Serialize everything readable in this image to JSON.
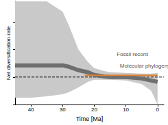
{
  "chart_data": {
    "type": "line",
    "x_label": "Time [Ma]",
    "y_label": "Net diversification rate",
    "xlim": [
      45,
      -2
    ],
    "xticks": [
      40,
      30,
      20,
      10,
      0
    ],
    "ylim": [
      -0.4,
      1.1
    ],
    "yticks": [
      -0.4,
      0,
      0.4,
      0.8
    ],
    "tick_labels": "x",
    "grid": false,
    "reference_line": 0,
    "series": [
      {
        "name": "Fossil record",
        "color": "#6e6e6e",
        "x": [
          45,
          40,
          35,
          30,
          28,
          25,
          22,
          20,
          17,
          15,
          10,
          5,
          2,
          0
        ],
        "values": [
          0.17,
          0.17,
          0.17,
          0.17,
          0.15,
          0.1,
          0.07,
          0.03,
          0.01,
          0.0,
          0.0,
          -0.02,
          -0.05,
          -0.07
        ],
        "lower": [
          -0.3,
          -0.3,
          -0.28,
          -0.25,
          -0.22,
          -0.15,
          -0.07,
          -0.04,
          -0.04,
          -0.04,
          -0.05,
          -0.1,
          -0.2,
          -0.4
        ],
        "upper": [
          1.1,
          1.1,
          1.1,
          0.95,
          0.75,
          0.4,
          0.22,
          0.13,
          0.09,
          0.07,
          0.06,
          0.05,
          0.05,
          0.06
        ]
      },
      {
        "name": "Molecular phylogeny",
        "color": "#d9813a",
        "x": [
          23,
          20,
          15,
          10,
          5,
          0
        ],
        "values": [
          0.025,
          0.025,
          0.025,
          0.025,
          0.025,
          0.025
        ],
        "lower": [
          0.01,
          0.01,
          0.01,
          0.01,
          0.01,
          0.01
        ],
        "upper": [
          0.04,
          0.04,
          0.04,
          0.04,
          0.04,
          0.04
        ]
      }
    ],
    "annotations": [
      {
        "text": "Fossil record",
        "x": 14,
        "y": 0.33
      },
      {
        "text": "Molecular phylogeny",
        "x": 13,
        "y": 0.16
      }
    ]
  }
}
